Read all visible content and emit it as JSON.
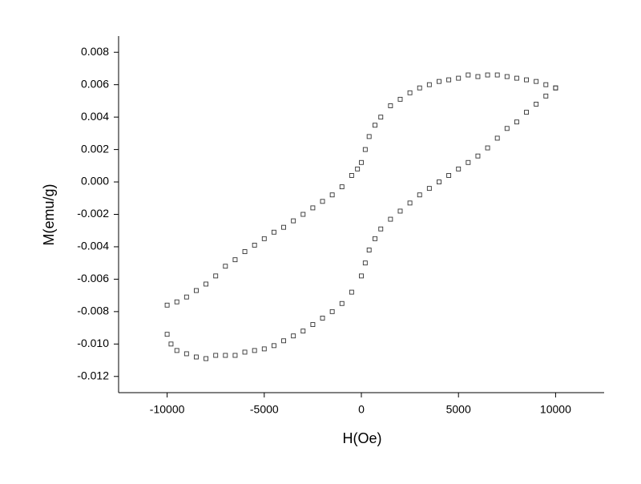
{
  "chart_data": {
    "type": "scatter",
    "x_label": "H(Oe)",
    "y_label": "M(emu/g)",
    "x": [
      10000,
      9500,
      9000,
      8500,
      8000,
      7500,
      7000,
      6500,
      6000,
      5500,
      5000,
      4500,
      4000,
      3500,
      3000,
      2500,
      2000,
      1500,
      1000,
      700,
      400,
      200,
      0,
      -200,
      -500,
      -1000,
      -1500,
      -2000,
      -2500,
      -3000,
      -3500,
      -4000,
      -4500,
      -5000,
      -5500,
      -6000,
      -6500,
      -7000,
      -7500,
      -8000,
      -8500,
      -9000,
      -9500,
      -10000,
      -10000,
      -9800,
      -9500,
      -9000,
      -8500,
      -8000,
      -7500,
      -7000,
      -6500,
      -6000,
      -5500,
      -5000,
      -4500,
      -4000,
      -3500,
      -3000,
      -2500,
      -2000,
      -1500,
      -1000,
      -500,
      0,
      200,
      400,
      700,
      1000,
      1500,
      2000,
      2500,
      3000,
      3500,
      4000,
      4500,
      5000,
      5500,
      6000,
      6500,
      7000,
      7500,
      8000,
      8500,
      9000,
      9500,
      10000
    ],
    "values": [
      0.0058,
      0.006,
      0.0062,
      0.0063,
      0.0064,
      0.0065,
      0.0066,
      0.0066,
      0.0065,
      0.0066,
      0.0064,
      0.0063,
      0.0062,
      0.006,
      0.0058,
      0.0055,
      0.0051,
      0.0047,
      0.004,
      0.0035,
      0.0028,
      0.002,
      0.0012,
      0.0008,
      0.0004,
      -0.0003,
      -0.0008,
      -0.0012,
      -0.0016,
      -0.002,
      -0.0024,
      -0.0028,
      -0.0031,
      -0.0035,
      -0.0039,
      -0.0043,
      -0.0048,
      -0.0052,
      -0.0058,
      -0.0063,
      -0.0067,
      -0.0071,
      -0.0074,
      -0.0076,
      -0.0094,
      -0.01,
      -0.0104,
      -0.0106,
      -0.0108,
      -0.0109,
      -0.0107,
      -0.0107,
      -0.0107,
      -0.0105,
      -0.0104,
      -0.0103,
      -0.0101,
      -0.0098,
      -0.0095,
      -0.0092,
      -0.0088,
      -0.0084,
      -0.008,
      -0.0075,
      -0.0068,
      -0.0058,
      -0.005,
      -0.0042,
      -0.0035,
      -0.0029,
      -0.0023,
      -0.0018,
      -0.0013,
      -0.0008,
      -0.0004,
      0.0,
      0.0004,
      0.0008,
      0.0012,
      0.0016,
      0.0021,
      0.0027,
      0.0033,
      0.0037,
      0.0043,
      0.0048,
      0.0053,
      0.0058
    ],
    "color": "#333333",
    "xlim": [
      -12500,
      12500
    ],
    "xticks": [
      -10000,
      -5000,
      0,
      5000,
      10000
    ],
    "ylim": [
      -0.013,
      0.009
    ],
    "yticks": [
      0.008,
      0.006,
      0.004,
      0.002,
      {
        "value": 0,
        "label": "0.000"
      },
      -0.002,
      -0.004,
      -0.006,
      -0.008,
      {
        "value": -0.01,
        "label": "-0.010"
      },
      -0.012
    ]
  }
}
